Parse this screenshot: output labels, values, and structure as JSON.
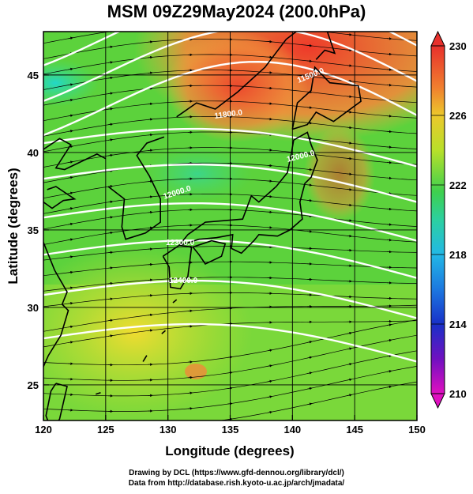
{
  "title": "MSM 09Z29May2024 (200.0hPa)",
  "map": {
    "xaxis": {
      "label": "Longitude (degrees)",
      "ticks": [
        "120",
        "125",
        "130",
        "135",
        "140",
        "145",
        "150"
      ],
      "range": [
        120,
        150
      ]
    },
    "yaxis": {
      "label": "Latitude  (degrees)",
      "ticks": [
        "25",
        "30",
        "35",
        "40",
        "45"
      ],
      "range": [
        22.7,
        47.8
      ]
    },
    "colorbar": {
      "ticks": [
        "230",
        "226",
        "222",
        "218",
        "214",
        "210"
      ],
      "range": [
        210,
        230
      ]
    },
    "contour_labels": [
      "11500.0",
      "11800.0",
      "12000.0",
      "12000.0",
      "12300.0",
      "12400.0"
    ]
  },
  "credits": {
    "line1": "Drawing by DCL (https://www.gfd-dennou.org/library/dcl/)",
    "line2": "Data from http://database.rish.kyoto-u.ac.jp/arch/jmadata/"
  }
}
